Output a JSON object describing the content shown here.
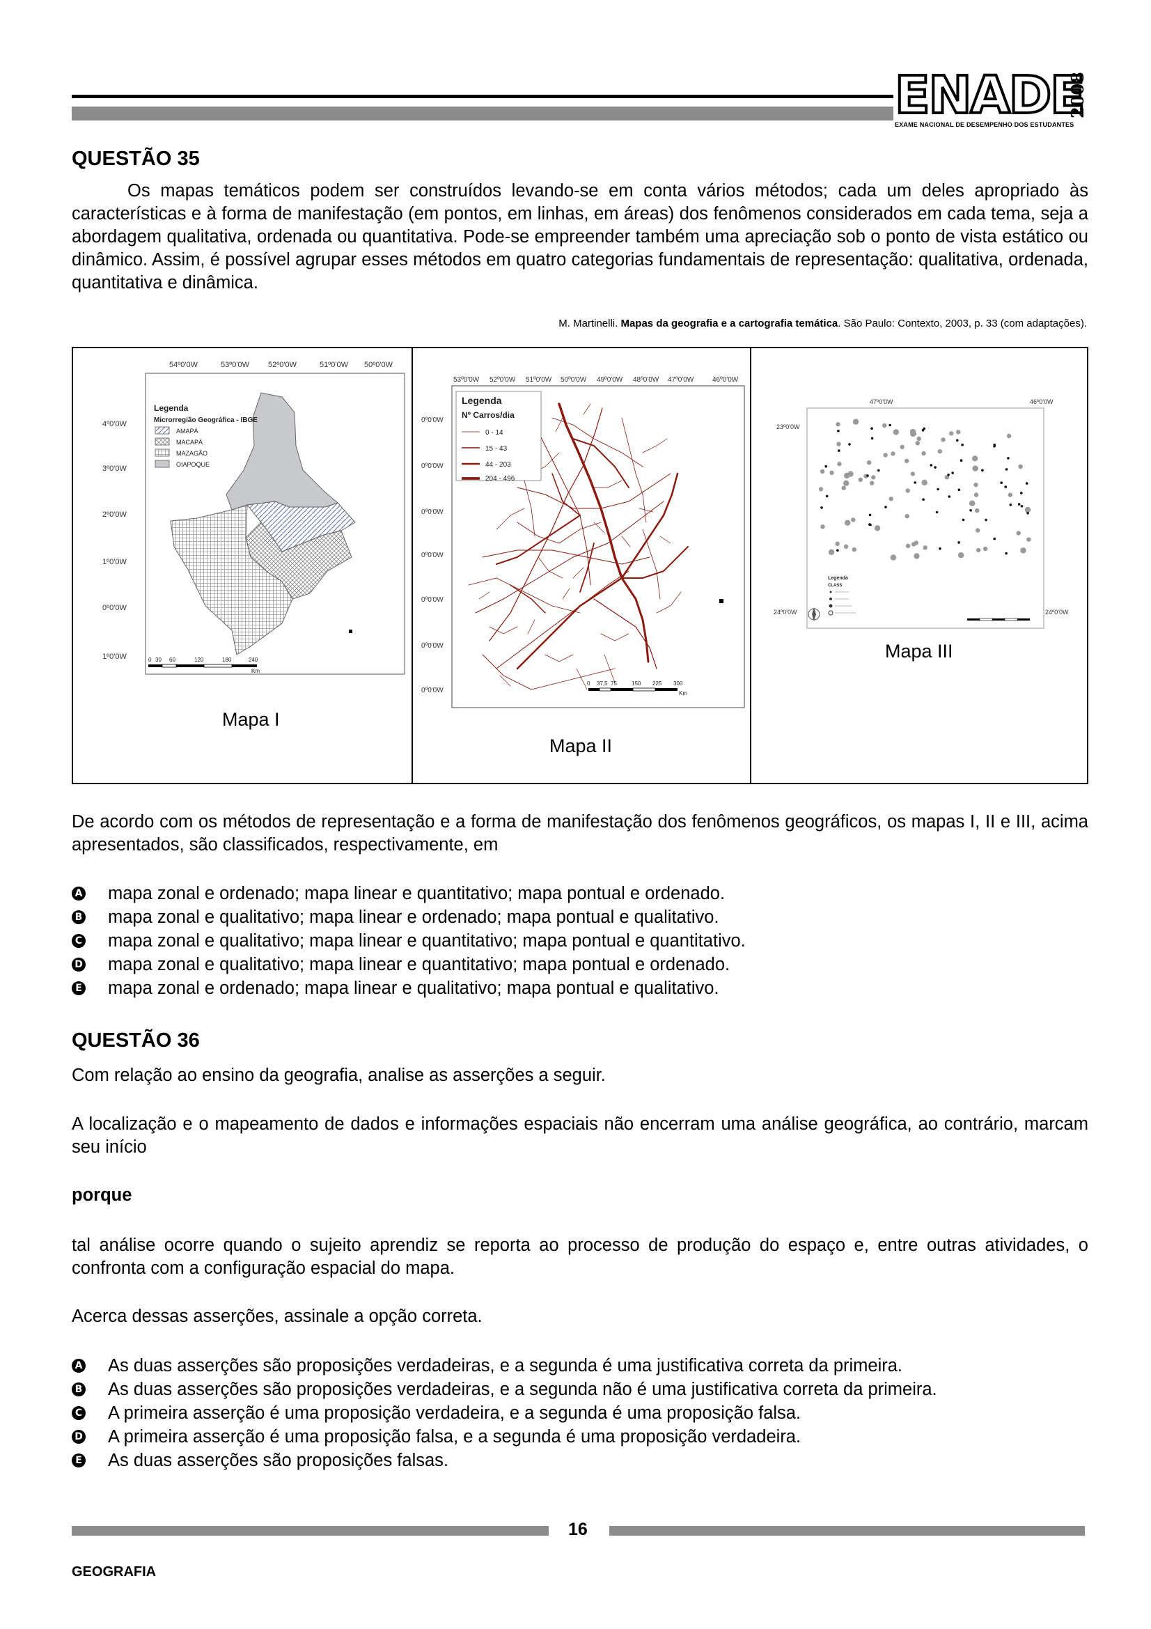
{
  "header": {
    "logo_word": "ENADE",
    "logo_year": "2008",
    "logo_subtitle": "EXAME NACIONAL DE DESEMPENHO DOS ESTUDANTES"
  },
  "q35": {
    "title": "QUESTÃO 35",
    "paragraph": "Os mapas temáticos podem ser construídos levando-se em conta vários métodos; cada um deles apropriado às características e à forma de manifestação (em pontos, em linhas, em áreas) dos fenômenos considerados em cada tema, seja a abordagem qualitativa, ordenada ou quantitativa. Pode-se empreender também uma apreciação sob o ponto de vista estático ou dinâmico. Assim, é possível agrupar esses métodos em quatro categorias fundamentais de representação: qualitativa, ordenada, quantitativa e dinâmica.",
    "source_author": "M. Martinelli. ",
    "source_title": "Mapas da geografia e a cartografia temática",
    "source_rest": ". São Paulo: Contexto, 2003, p. 33 (com adaptações).",
    "map1": {
      "label": "Mapa I",
      "top_ticks": [
        "54º0'0W",
        "53º0'0W",
        "52º0'0W",
        "51º0'0W",
        "50º0'0W"
      ],
      "left_ticks": [
        "4º0'0W",
        "3º0'0W",
        "2º0'0W",
        "1º0'0W",
        "0º0'0W",
        "1º0'0W"
      ],
      "legend_title": "Legenda",
      "legend_subtitle": "Microrregião Geográfica - IBGE",
      "legend_items": [
        "AMAPÁ",
        "MACAPÁ",
        "MAZAGÃO",
        "OIAPOQUE"
      ],
      "scale": [
        "0",
        "30",
        "60",
        "120",
        "180",
        "240"
      ],
      "scale_unit": "Km"
    },
    "map2": {
      "label": "Mapa II",
      "top_ticks": [
        "53º0'0W",
        "52º0'0W",
        "51º0'0W",
        "50º0'0W",
        "49º0'0W",
        "48º0'0W",
        "47º0'0W",
        "46º0'0W"
      ],
      "left_ticks": [
        "0º0'0W",
        "0º0'0W",
        "0º0'0W",
        "0º0'0W",
        "0º0'0W",
        "0º0'0W",
        "0º0'0W"
      ],
      "legend_title": "Legenda",
      "legend_subtitle": "Nº Carros/dia",
      "legend_items": [
        "0 - 14",
        "15 - 43",
        "44 - 203",
        "204 - 496"
      ],
      "scale": [
        "0",
        "37,5",
        "75",
        "150",
        "225",
        "300"
      ],
      "scale_unit": "Km"
    },
    "map3": {
      "label": "Mapa III",
      "top_ticks": [
        "47º0'0W",
        "46º0'0W"
      ],
      "left_ticks": [
        "23º0'0W",
        "24º0'0W"
      ],
      "right_tick": "24º0'0W",
      "legend_title": "Legenda",
      "legend_subtitle": "CLASS"
    },
    "question": "De acordo com os métodos de representação e a forma de manifestação dos fenômenos geográficos, os mapas I, II e III, acima apresentados, são classificados, respectivamente, em",
    "options": [
      {
        "letter": "A",
        "text": "mapa zonal e ordenado; mapa linear e quantitativo; mapa pontual e ordenado."
      },
      {
        "letter": "B",
        "text": "mapa zonal e qualitativo; mapa linear e ordenado; mapa pontual e qualitativo."
      },
      {
        "letter": "C",
        "text": "mapa zonal e qualitativo; mapa linear e quantitativo; mapa pontual e quantitativo."
      },
      {
        "letter": "D",
        "text": "mapa zonal e qualitativo; mapa linear e quantitativo; mapa pontual e ordenado."
      },
      {
        "letter": "E",
        "text": "mapa zonal e ordenado; mapa linear e qualitativo; mapa pontual e qualitativo."
      }
    ]
  },
  "q36": {
    "title": "QUESTÃO 36",
    "intro": "Com relação ao ensino da geografia, analise as asserções a seguir.",
    "assertion1": "A localização e o mapeamento de dados e informações espaciais não encerram uma análise geográfica, ao contrário, marcam seu início",
    "connector": "porque",
    "assertion2": "tal análise ocorre quando o sujeito aprendiz se reporta ao processo de produção do espaço e, entre outras atividades, o confronta com a configuração espacial do mapa.",
    "prompt": "Acerca dessas asserções, assinale a opção correta.",
    "options": [
      {
        "letter": "A",
        "text": "As duas asserções são proposições verdadeiras, e a segunda é uma justificativa correta da primeira."
      },
      {
        "letter": "B",
        "text": "As duas asserções são proposições verdadeiras, e a segunda não é uma justificativa correta da primeira."
      },
      {
        "letter": "C",
        "text": "A primeira asserção é uma proposição verdadeira, e a segunda é uma proposição falsa."
      },
      {
        "letter": "D",
        "text": "A primeira asserção é uma proposição falsa, e a segunda é uma proposição verdadeira."
      },
      {
        "letter": "E",
        "text": "As duas asserções são proposições falsas."
      }
    ]
  },
  "footer": {
    "page_number": "16",
    "subject": "GEOGRAFIA"
  }
}
